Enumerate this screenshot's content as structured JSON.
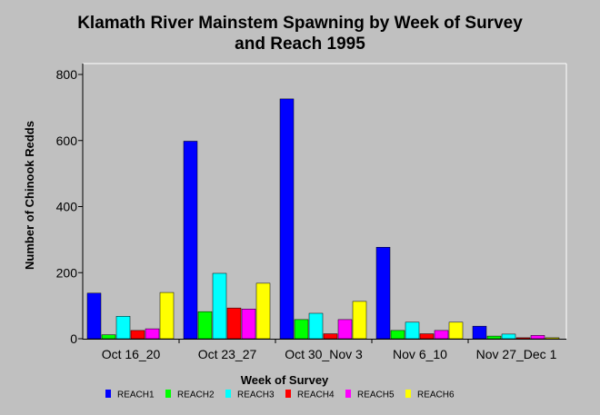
{
  "chart_data": {
    "type": "bar",
    "title_line1": "Klamath River Mainstem Spawning by Week of Survey",
    "title_line2": "and Reach 1995",
    "xlabel": "Week of Survey",
    "ylabel": "Number of Chinook Redds",
    "ylim": [
      0,
      800
    ],
    "yticks": [
      "0",
      "200",
      "400",
      "600",
      "800"
    ],
    "grid": false,
    "legend_position": "bottom",
    "categories": [
      "Oct 16_20",
      "Oct 23_27",
      "Oct 30_Nov 3",
      "Nov 6_10",
      "Nov 27_Dec 1"
    ],
    "series": [
      {
        "name": "REACH1",
        "color": "#0000ff",
        "values": [
          138,
          598,
          726,
          277,
          38
        ]
      },
      {
        "name": "REACH2",
        "color": "#00ff00",
        "values": [
          12,
          82,
          58,
          25,
          8
        ]
      },
      {
        "name": "REACH3",
        "color": "#00ffff",
        "values": [
          68,
          198,
          77,
          50,
          14
        ]
      },
      {
        "name": "REACH4",
        "color": "#ff0000",
        "values": [
          25,
          93,
          15,
          15,
          3
        ]
      },
      {
        "name": "REACH5",
        "color": "#ff00ff",
        "values": [
          30,
          90,
          58,
          25,
          10
        ]
      },
      {
        "name": "REACH6",
        "color": "#ffff00",
        "values": [
          140,
          168,
          113,
          50,
          3
        ]
      }
    ]
  }
}
